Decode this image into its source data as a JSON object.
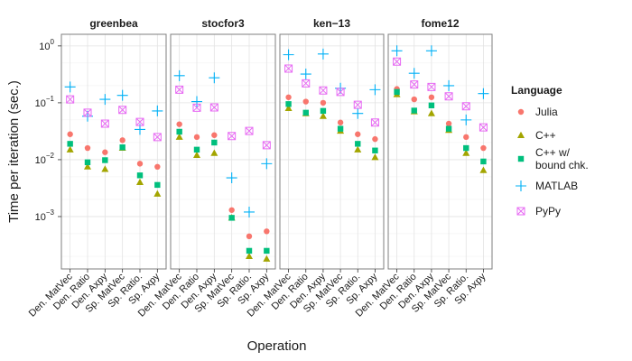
{
  "chart_data": {
    "type": "scatter",
    "xlabel": "Operation",
    "ylabel": "Time per iteration (sec.)",
    "y_scale": "log10",
    "ylim": [
      0.00012,
      1.6
    ],
    "y_ticks": [
      {
        "value": 0.001,
        "label": "10"
      },
      {
        "value": 0.01,
        "label": "10"
      },
      {
        "value": 0.1,
        "label": "10"
      },
      {
        "value": 1,
        "label": "10"
      }
    ],
    "y_tick_exponents": [
      "−3",
      "−2",
      "−1",
      "0"
    ],
    "categories": [
      "Den. MatVec",
      "Den. Ratio",
      "Den. Axpy",
      "Sp. MatVec",
      "Sp. Ratio.",
      "Sp. Axpy"
    ],
    "facets": [
      "greenbea",
      "stocfor3",
      "ken−13",
      "fome12"
    ],
    "legend": {
      "title": "Language",
      "position": "right"
    },
    "series": [
      {
        "name": "Julia",
        "color": "#F8766D",
        "marker": "circle",
        "values": {
          "greenbea": [
            0.028,
            0.016,
            0.0135,
            0.022,
            0.0085,
            0.0075
          ],
          "stocfor3": [
            0.042,
            0.025,
            0.027,
            0.0013,
            0.00045,
            0.00055
          ],
          "ken−13": [
            0.125,
            0.105,
            0.1,
            0.045,
            0.028,
            0.023
          ],
          "fome12": [
            0.175,
            0.115,
            0.125,
            0.043,
            0.025,
            0.016
          ]
        }
      },
      {
        "name": "C++",
        "color": "#A3A500",
        "marker": "triangle",
        "values": {
          "greenbea": [
            0.015,
            0.0075,
            0.0068,
            0.016,
            0.004,
            0.0025
          ],
          "stocfor3": [
            0.025,
            0.012,
            0.013,
            0.00095,
            0.0002,
            0.00018
          ],
          "ken−13": [
            0.08,
            0.065,
            0.058,
            0.032,
            0.015,
            0.011
          ],
          "fome12": [
            0.14,
            0.07,
            0.065,
            0.033,
            0.013,
            0.0065
          ]
        }
      },
      {
        "name": "C++ w/\nbound chk.",
        "color": "#00BF7D",
        "marker": "square",
        "values": {
          "greenbea": [
            0.019,
            0.009,
            0.0098,
            0.0165,
            0.0053,
            0.0036
          ],
          "stocfor3": [
            0.031,
            0.015,
            0.02,
            0.00095,
            0.00025,
            0.00025
          ],
          "ken−13": [
            0.095,
            0.067,
            0.072,
            0.035,
            0.019,
            0.0145
          ],
          "fome12": [
            0.155,
            0.073,
            0.09,
            0.035,
            0.016,
            0.0093
          ]
        }
      },
      {
        "name": "MATLAB",
        "color": "#00B0F6",
        "marker": "plus",
        "values": {
          "greenbea": [
            0.19,
            0.058,
            0.115,
            0.135,
            0.034,
            0.072
          ],
          "stocfor3": [
            0.3,
            0.105,
            0.275,
            0.0048,
            0.0012,
            0.0085
          ],
          "ken−13": [
            0.7,
            0.32,
            0.72,
            0.18,
            0.065,
            0.17
          ],
          "fome12": [
            0.82,
            0.33,
            0.82,
            0.2,
            0.05,
            0.145
          ]
        }
      },
      {
        "name": "PyPy",
        "color": "#E76BF3",
        "marker": "boxcross",
        "values": {
          "greenbea": [
            0.115,
            0.067,
            0.043,
            0.075,
            0.046,
            0.025
          ],
          "stocfor3": [
            0.17,
            0.082,
            0.083,
            0.026,
            0.032,
            0.018
          ],
          "ken−13": [
            0.4,
            0.22,
            0.165,
            0.155,
            0.092,
            0.045
          ],
          "fome12": [
            0.53,
            0.21,
            0.19,
            0.13,
            0.087,
            0.037
          ]
        }
      }
    ]
  }
}
